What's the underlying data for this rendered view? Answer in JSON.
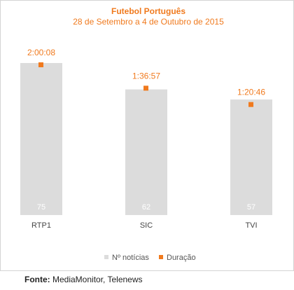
{
  "chart_data": {
    "type": "bar",
    "title": "Futebol Português",
    "subtitle": "28 de Setembro a 4 de Outubro de 2015",
    "categories": [
      "RTP1",
      "SIC",
      "TVI"
    ],
    "series": [
      {
        "name": "Nº notícias",
        "type": "bar",
        "values": [
          75,
          62,
          57
        ],
        "color": "#dcdcdc"
      },
      {
        "name": "Duração",
        "type": "marker",
        "values": [
          "2:00:08",
          "1:36:57",
          "1:20:46"
        ],
        "color": "#f07a1e"
      }
    ],
    "legend_position": "bottom",
    "grid": false
  },
  "source": {
    "label": "Fonte:",
    "text": "MediaMonitor, Telenews"
  }
}
